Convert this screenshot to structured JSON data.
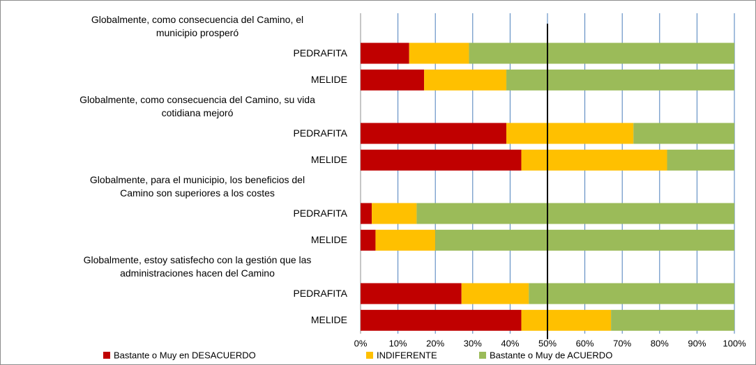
{
  "chart_data": {
    "type": "stacked_barh",
    "categories": [
      "Globalmente, como consecuencia del Camino, el\nmunicipio prosperó",
      "PEDRAFITA",
      "MELIDE",
      "Globalmente, como consecuencia del Camino, su vida\ncotidiana mejoró",
      "PEDRAFITA",
      "MELIDE",
      "Globalmente, para el municipio, los beneficios del\nCamino son superiores a los costes",
      "PEDRAFITA",
      "MELIDE",
      "Globalmente, estoy satisfecho con la gestión  que las\nadministraciones hacen del Camino",
      "PEDRAFITA",
      "MELIDE"
    ],
    "series": [
      {
        "name": "Bastante o Muy en DESACUERDO",
        "color": "#c00000",
        "values": [
          null,
          13,
          17,
          null,
          39,
          43,
          null,
          3,
          4,
          null,
          27,
          43
        ]
      },
      {
        "name": "INDIFERENTE",
        "color": "#ffc000",
        "values": [
          null,
          16,
          22,
          null,
          34,
          39,
          null,
          12,
          16,
          null,
          18,
          24
        ]
      },
      {
        "name": "Bastante o Muy de ACUERDO",
        "color": "#9bbb59",
        "values": [
          null,
          71,
          61,
          null,
          27,
          18,
          null,
          85,
          80,
          null,
          55,
          33
        ]
      }
    ],
    "xlim": [
      0,
      100
    ],
    "xticks": [
      {
        "value": 0,
        "label": "0%"
      },
      {
        "value": 10,
        "label": "10%"
      },
      {
        "value": 20,
        "label": "20%"
      },
      {
        "value": 30,
        "label": "30%"
      },
      {
        "value": 40,
        "label": "40%"
      },
      {
        "value": 50,
        "label": "50%"
      },
      {
        "value": 60,
        "label": "60%"
      },
      {
        "value": 70,
        "label": "70%"
      },
      {
        "value": 80,
        "label": "80%"
      },
      {
        "value": 90,
        "label": "90%"
      },
      {
        "value": 100,
        "label": "100%"
      }
    ],
    "grid": true,
    "reference_line": 50,
    "legend": "bottom"
  }
}
